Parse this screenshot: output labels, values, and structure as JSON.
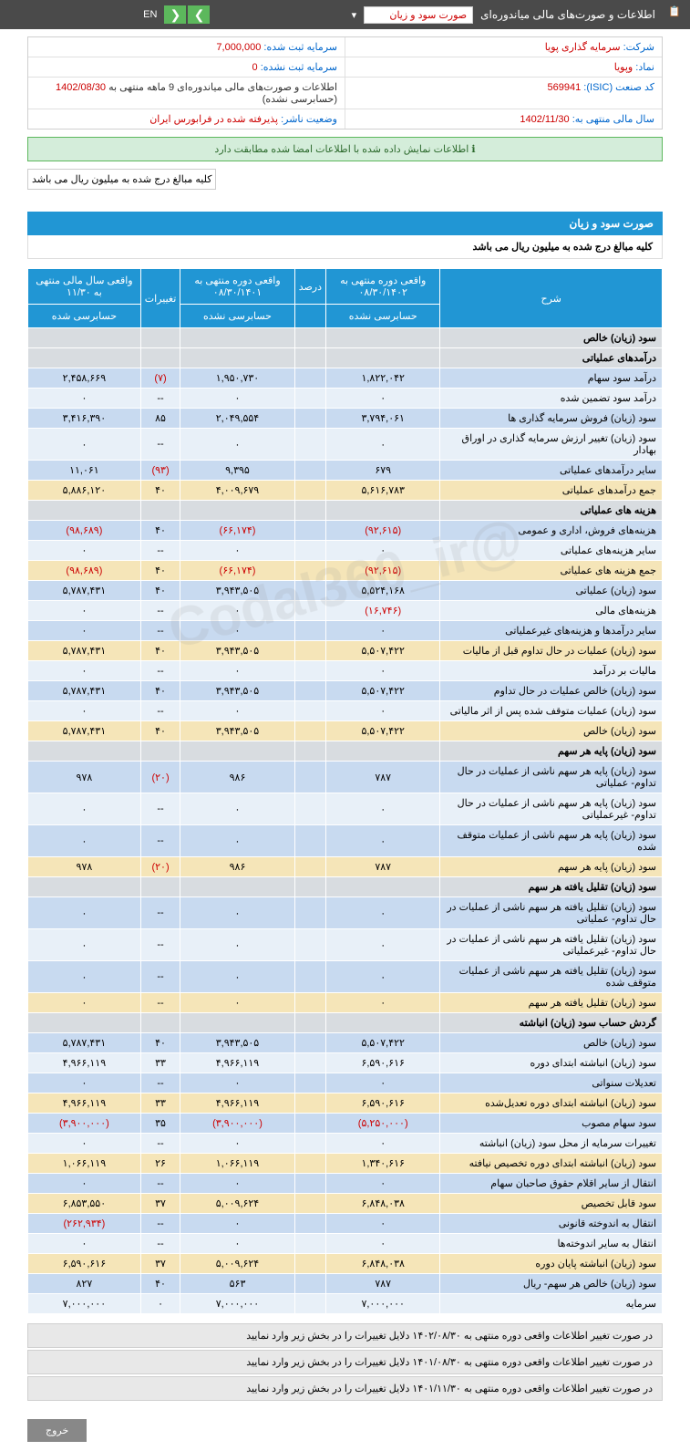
{
  "topbar": {
    "title": "اطلاعات و صورت‌های مالی میاندوره‌ای",
    "dropdown": "صورت سود و زیان",
    "lang": "EN"
  },
  "info": {
    "company_lbl": "شرکت:",
    "company": "سرمایه گذاری پویا",
    "symbol_lbl": "نماد:",
    "symbol": "وپویا",
    "isic_lbl": "کد صنعت (ISIC):",
    "isic": "569941",
    "year_lbl": "سال مالی منتهی به:",
    "year": "1402/11/30",
    "cap_reg_lbl": "سرمایه ثبت شده:",
    "cap_reg": "7,000,000",
    "cap_unreg_lbl": "سرمایه ثبت نشده:",
    "cap_unreg": "0",
    "report_lbl": "اطلاعات و صورت‌های مالی میاندوره‌ای 9 ماهه منتهی به",
    "report_date": "1402/08/30",
    "report_suffix": "(حسابرسی نشده)",
    "status_lbl": "وضعیت ناشر:",
    "status": "پذیرفته شده در فرابورس ایران"
  },
  "alert": "اطلاعات نمایش داده شده با اطلاعات امضا شده مطابقت دارد",
  "note": "کلیه مبالغ درج شده به میلیون ریال می باشد",
  "section": "صورت سود و زیان",
  "subtitle": "کلیه مبالغ درج شده به میلیون ریال می باشد",
  "watermark": "@Codal360_ir",
  "headers": {
    "desc": "شرح",
    "c1": "واقعی دوره منتهی به ۰۸/۳۰/۱۴۰۲",
    "c1s": "حسابرسی نشده",
    "pct": "درصد",
    "c2": "واقعی دوره منتهی به ۰۸/۳۰/۱۴۰۱",
    "c2s": "حسابرسی نشده",
    "chg": "تغییرات",
    "c3": "واقعی سال مالی منتهی به ۱۱/۳۰",
    "c3s": "حسابرسی شده"
  },
  "rows": [
    {
      "cls": "row-gray",
      "desc": "سود (زیان) خالص",
      "c1": "",
      "c2": "",
      "chg": "",
      "c3": "",
      "bold": true
    },
    {
      "cls": "row-gray",
      "desc": "درآمدهای عملیاتی",
      "c1": "",
      "c2": "",
      "chg": "",
      "c3": "",
      "bold": true
    },
    {
      "cls": "row-blue",
      "desc": "درآمد سود سهام",
      "c1": "۱,۸۲۲,۰۴۲",
      "c2": "۱,۹۵۰,۷۳۰",
      "chg": "(۷)",
      "chgNeg": true,
      "c3": "۲,۴۵۸,۶۶۹"
    },
    {
      "cls": "row-ltblue",
      "desc": "درآمد سود تضمین شده",
      "c1": "۰",
      "c2": "۰",
      "chg": "--",
      "c3": "۰"
    },
    {
      "cls": "row-blue",
      "desc": "سود (زیان) فروش سرمایه گذاری ها",
      "c1": "۳,۷۹۴,۰۶۱",
      "c2": "۲,۰۴۹,۵۵۴",
      "chg": "۸۵",
      "c3": "۳,۴۱۶,۳۹۰"
    },
    {
      "cls": "row-ltblue",
      "desc": "سود (زیان) تغییر ارزش سرمایه گذاری در اوراق بهادار",
      "c1": "۰",
      "c2": "۰",
      "chg": "--",
      "c3": "۰"
    },
    {
      "cls": "row-blue",
      "desc": "سایر درآمدهای عملیاتی",
      "c1": "۶۷۹",
      "c2": "۹,۳۹۵",
      "chg": "(۹۳)",
      "chgNeg": true,
      "c3": "۱۱,۰۶۱"
    },
    {
      "cls": "row-yellow",
      "desc": "جمع درآمدهای عملیاتی",
      "c1": "۵,۶۱۶,۷۸۳",
      "c2": "۴,۰۰۹,۶۷۹",
      "chg": "۴۰",
      "c3": "۵,۸۸۶,۱۲۰"
    },
    {
      "cls": "row-gray",
      "desc": "هزینه های عملیاتی",
      "c1": "",
      "c2": "",
      "chg": "",
      "c3": "",
      "bold": true
    },
    {
      "cls": "row-blue",
      "desc": "هزینه‌های فروش، اداری و عمومی",
      "c1": "(۹۲,۶۱۵)",
      "c1Neg": true,
      "c2": "(۶۶,۱۷۴)",
      "c2Neg": true,
      "chg": "۴۰",
      "c3": "(۹۸,۶۸۹)",
      "c3Neg": true
    },
    {
      "cls": "row-ltblue",
      "desc": "سایر هزینه‌های عملیاتی",
      "c1": "۰",
      "c2": "۰",
      "chg": "--",
      "c3": "۰"
    },
    {
      "cls": "row-yellow",
      "desc": "جمع هزینه های عملیاتی",
      "c1": "(۹۲,۶۱۵)",
      "c1Neg": true,
      "c2": "(۶۶,۱۷۴)",
      "c2Neg": true,
      "chg": "۴۰",
      "c3": "(۹۸,۶۸۹)",
      "c3Neg": true
    },
    {
      "cls": "row-blue",
      "desc": "سود (زیان) عملیاتی",
      "c1": "۵,۵۲۴,۱۶۸",
      "c2": "۳,۹۴۳,۵۰۵",
      "chg": "۴۰",
      "c3": "۵,۷۸۷,۴۳۱"
    },
    {
      "cls": "row-ltblue",
      "desc": "هزینه‌های مالی",
      "c1": "(۱۶,۷۴۶)",
      "c1Neg": true,
      "c2": "۰",
      "chg": "--",
      "c3": "۰"
    },
    {
      "cls": "row-blue",
      "desc": "سایر درآمدها و هزینه‌های غیرعملیاتی",
      "c1": "۰",
      "c2": "۰",
      "chg": "--",
      "c3": "۰"
    },
    {
      "cls": "row-yellow",
      "desc": "سود (زیان) عملیات در حال تداوم قبل از مالیات",
      "c1": "۵,۵۰۷,۴۲۲",
      "c2": "۳,۹۴۳,۵۰۵",
      "chg": "۴۰",
      "c3": "۵,۷۸۷,۴۳۱"
    },
    {
      "cls": "row-ltblue",
      "desc": "مالیات بر درآمد",
      "c1": "۰",
      "c2": "۰",
      "chg": "--",
      "c3": "۰"
    },
    {
      "cls": "row-blue",
      "desc": "سود (زیان) خالص عملیات در حال تداوم",
      "c1": "۵,۵۰۷,۴۲۲",
      "c2": "۳,۹۴۳,۵۰۵",
      "chg": "۴۰",
      "c3": "۵,۷۸۷,۴۳۱"
    },
    {
      "cls": "row-ltblue",
      "desc": "سود (زیان) عملیات متوقف شده پس از اثر مالیاتی",
      "c1": "۰",
      "c2": "۰",
      "chg": "--",
      "c3": "۰"
    },
    {
      "cls": "row-yellow",
      "desc": "سود (زیان) خالص",
      "c1": "۵,۵۰۷,۴۲۲",
      "c2": "۳,۹۴۳,۵۰۵",
      "chg": "۴۰",
      "c3": "۵,۷۸۷,۴۳۱"
    },
    {
      "cls": "row-gray",
      "desc": "سود (زیان) پایه هر سهم",
      "c1": "",
      "c2": "",
      "chg": "",
      "c3": "",
      "bold": true
    },
    {
      "cls": "row-blue",
      "desc": "سود (زیان) پایه هر سهم ناشی از عملیات در حال تداوم- عملیاتی",
      "c1": "۷۸۷",
      "c2": "۹۸۶",
      "chg": "(۲۰)",
      "chgNeg": true,
      "c3": "۹۷۸"
    },
    {
      "cls": "row-ltblue",
      "desc": "سود (زیان) پایه هر سهم ناشی از عملیات در حال تداوم- غیرعملیاتی",
      "c1": "۰",
      "c2": "۰",
      "chg": "--",
      "c3": "۰"
    },
    {
      "cls": "row-blue",
      "desc": "سود (زیان) پایه هر سهم ناشی از عملیات متوقف شده",
      "c1": "۰",
      "c2": "۰",
      "chg": "--",
      "c3": "۰"
    },
    {
      "cls": "row-yellow",
      "desc": "سود (زیان) پایه هر سهم",
      "c1": "۷۸۷",
      "c2": "۹۸۶",
      "chg": "(۲۰)",
      "chgNeg": true,
      "c3": "۹۷۸"
    },
    {
      "cls": "row-gray",
      "desc": "سود (زیان) تقلیل یافته هر سهم",
      "c1": "",
      "c2": "",
      "chg": "",
      "c3": "",
      "bold": true
    },
    {
      "cls": "row-blue",
      "desc": "سود (زیان) تقلیل یافته هر سهم ناشی از عملیات در حال تداوم- عملیاتی",
      "c1": "۰",
      "c2": "۰",
      "chg": "--",
      "c3": "۰"
    },
    {
      "cls": "row-ltblue",
      "desc": "سود (زیان) تقلیل یافته هر سهم ناشی از عملیات در حال تداوم- غیرعملیاتی",
      "c1": "۰",
      "c2": "۰",
      "chg": "--",
      "c3": "۰"
    },
    {
      "cls": "row-blue",
      "desc": "سود (زیان) تقلیل یافته هر سهم ناشی از عملیات متوقف شده",
      "c1": "۰",
      "c2": "۰",
      "chg": "--",
      "c3": "۰"
    },
    {
      "cls": "row-yellow",
      "desc": "سود (زیان) تقلیل یافته هر سهم",
      "c1": "۰",
      "c2": "۰",
      "chg": "--",
      "c3": "۰"
    },
    {
      "cls": "row-gray",
      "desc": "گردش حساب سود (زیان) انباشته",
      "c1": "",
      "c2": "",
      "chg": "",
      "c3": "",
      "bold": true
    },
    {
      "cls": "row-blue",
      "desc": "سود (زیان) خالص",
      "c1": "۵,۵۰۷,۴۲۲",
      "c2": "۳,۹۴۳,۵۰۵",
      "chg": "۴۰",
      "c3": "۵,۷۸۷,۴۳۱"
    },
    {
      "cls": "row-ltblue",
      "desc": "سود (زیان) انباشته ابتدای دوره",
      "c1": "۶,۵۹۰,۶۱۶",
      "c2": "۴,۹۶۶,۱۱۹",
      "chg": "۳۳",
      "c3": "۴,۹۶۶,۱۱۹"
    },
    {
      "cls": "row-blue",
      "desc": "تعدیلات سنواتی",
      "c1": "۰",
      "c2": "۰",
      "chg": "--",
      "c3": "۰"
    },
    {
      "cls": "row-yellow",
      "desc": "سود (زیان) انباشته ابتدای دوره تعدیل‌شده",
      "c1": "۶,۵۹۰,۶۱۶",
      "c2": "۴,۹۶۶,۱۱۹",
      "chg": "۳۳",
      "c3": "۴,۹۶۶,۱۱۹"
    },
    {
      "cls": "row-blue",
      "desc": "سود سهام مصوب",
      "c1": "(۵,۲۵۰,۰۰۰)",
      "c1Neg": true,
      "c2": "(۳,۹۰۰,۰۰۰)",
      "c2Neg": true,
      "chg": "۳۵",
      "c3": "(۳,۹۰۰,۰۰۰)",
      "c3Neg": true
    },
    {
      "cls": "row-ltblue",
      "desc": "تغییرات سرمایه از محل سود (زیان) انباشته",
      "c1": "۰",
      "c2": "۰",
      "chg": "--",
      "c3": "۰"
    },
    {
      "cls": "row-yellow",
      "desc": "سود (زیان) انباشته ابتدای دوره تخصیص نیافته",
      "c1": "۱,۳۴۰,۶۱۶",
      "c2": "۱,۰۶۶,۱۱۹",
      "chg": "۲۶",
      "c3": "۱,۰۶۶,۱۱۹"
    },
    {
      "cls": "row-blue",
      "desc": "انتقال از سایر اقلام حقوق صاحبان سهام",
      "c1": "۰",
      "c2": "۰",
      "chg": "--",
      "c3": "۰"
    },
    {
      "cls": "row-yellow",
      "desc": "سود قابل تخصیص",
      "c1": "۶,۸۴۸,۰۳۸",
      "c2": "۵,۰۰۹,۶۲۴",
      "chg": "۳۷",
      "c3": "۶,۸۵۳,۵۵۰"
    },
    {
      "cls": "row-blue",
      "desc": "انتقال به اندوخته قانونی",
      "c1": "۰",
      "c2": "۰",
      "chg": "--",
      "c3": "(۲۶۲,۹۳۴)",
      "c3Neg": true
    },
    {
      "cls": "row-ltblue",
      "desc": "انتقال به سایر اندوخته‌ها",
      "c1": "۰",
      "c2": "۰",
      "chg": "--",
      "c3": "۰"
    },
    {
      "cls": "row-yellow",
      "desc": "سود (زیان) انباشته پایان دوره",
      "c1": "۶,۸۴۸,۰۳۸",
      "c2": "۵,۰۰۹,۶۲۴",
      "chg": "۳۷",
      "c3": "۶,۵۹۰,۶۱۶"
    },
    {
      "cls": "row-blue",
      "desc": "سود (زیان) خالص هر سهم- ریال",
      "c1": "۷۸۷",
      "c2": "۵۶۳",
      "chg": "۴۰",
      "c3": "۸۲۷"
    },
    {
      "cls": "row-ltblue",
      "desc": "سرمایه",
      "c1": "۷,۰۰۰,۰۰۰",
      "c2": "۷,۰۰۰,۰۰۰",
      "chg": "۰",
      "c3": "۷,۰۰۰,۰۰۰"
    }
  ],
  "footnotes": [
    "در صورت تغییر اطلاعات واقعی دوره منتهی به ۱۴۰۲/۰۸/۳۰ دلایل تغییرات را در بخش زیر وارد نمایید",
    "در صورت تغییر اطلاعات واقعی دوره منتهی به ۱۴۰۱/۰۸/۳۰ دلایل تغییرات را در بخش زیر وارد نمایید",
    "در صورت تغییر اطلاعات واقعی دوره منتهی به ۱۴۰۱/۱۱/۳۰ دلایل تغییرات را در بخش زیر وارد نمایید"
  ],
  "exit": "خروج"
}
